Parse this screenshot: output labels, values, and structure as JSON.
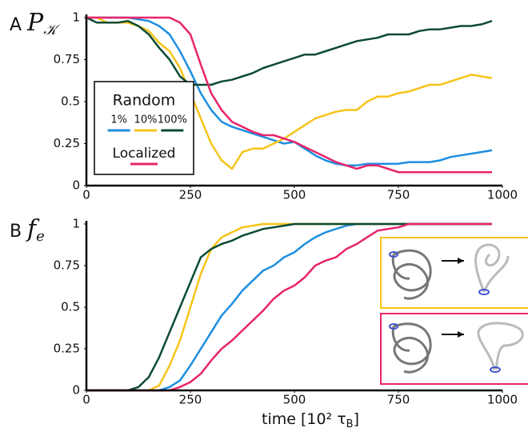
{
  "chart_data": [
    {
      "type": "line",
      "panel": "A",
      "ylabel": "P",
      "ylabel_subscript": "𝒦",
      "legend_title": "Random",
      "legend": "lower left",
      "x": [
        0,
        25,
        50,
        75,
        100,
        125,
        150,
        175,
        200,
        225,
        250,
        275,
        300,
        325,
        350,
        375,
        400,
        425,
        450,
        475,
        500,
        525,
        550,
        575,
        600,
        625,
        650,
        675,
        700,
        725,
        750,
        775,
        800,
        825,
        850,
        875,
        900,
        925,
        950,
        975
      ],
      "xlim": [
        0,
        1000
      ],
      "xticks": [
        0,
        250,
        500,
        750,
        1000
      ],
      "ylim": [
        0,
        1
      ],
      "yticks": [
        0,
        0.25,
        0.5,
        0.75,
        1
      ],
      "series": [
        {
          "name": "1%",
          "color": "#1e8fe0",
          "values": [
            1,
            1,
            1,
            1,
            1,
            0.99,
            0.98,
            0.95,
            0.9,
            0.8,
            0.68,
            0.55,
            0.45,
            0.38,
            0.35,
            0.33,
            0.31,
            0.29,
            0.27,
            0.25,
            0.26,
            0.22,
            0.18,
            0.15,
            0.13,
            0.12,
            0.12,
            0.13,
            0.13,
            0.13,
            0.13,
            0.14,
            0.14,
            0.14,
            0.15,
            0.17,
            0.18,
            0.19,
            0.2,
            0.21
          ]
        },
        {
          "name": "10%",
          "color": "#f6c41a",
          "values": [
            1,
            1,
            0.97,
            0.97,
            0.97,
            0.95,
            0.92,
            0.85,
            0.8,
            0.7,
            0.55,
            0.4,
            0.25,
            0.15,
            0.1,
            0.2,
            0.22,
            0.22,
            0.25,
            0.28,
            0.32,
            0.36,
            0.4,
            0.42,
            0.44,
            0.45,
            0.45,
            0.5,
            0.53,
            0.53,
            0.55,
            0.56,
            0.58,
            0.6,
            0.6,
            0.62,
            0.64,
            0.66,
            0.65,
            0.64
          ]
        },
        {
          "name": "100%",
          "color": "#0c4b33",
          "values": [
            1,
            0.97,
            0.97,
            0.97,
            0.98,
            0.95,
            0.9,
            0.82,
            0.75,
            0.65,
            0.6,
            0.6,
            0.6,
            0.62,
            0.63,
            0.65,
            0.67,
            0.7,
            0.72,
            0.74,
            0.76,
            0.78,
            0.78,
            0.8,
            0.82,
            0.84,
            0.86,
            0.87,
            0.88,
            0.9,
            0.9,
            0.9,
            0.92,
            0.93,
            0.93,
            0.94,
            0.95,
            0.95,
            0.96,
            0.98
          ]
        },
        {
          "name": "Localized",
          "color": "#e8246b",
          "values": [
            1,
            1,
            1,
            1,
            1,
            1,
            1,
            1,
            1,
            0.97,
            0.9,
            0.72,
            0.55,
            0.45,
            0.38,
            0.35,
            0.32,
            0.3,
            0.3,
            0.28,
            0.26,
            0.23,
            0.2,
            0.17,
            0.14,
            0.12,
            0.1,
            0.12,
            0.12,
            0.1,
            0.08,
            0.08,
            0.08,
            0.08,
            0.08,
            0.08,
            0.08,
            0.08,
            0.08,
            0.08
          ]
        }
      ]
    },
    {
      "type": "line",
      "panel": "B",
      "ylabel": "f",
      "ylabel_subscript": "e",
      "xlabel": "time [10² τ",
      "xlabel_subscript": "B",
      "xlabel_end": "]",
      "x": [
        0,
        25,
        50,
        75,
        100,
        125,
        150,
        175,
        200,
        225,
        250,
        275,
        300,
        325,
        350,
        375,
        400,
        425,
        450,
        475,
        500,
        525,
        550,
        575,
        600,
        625,
        650,
        675,
        700,
        725,
        750,
        775,
        800,
        825,
        850,
        875,
        900,
        925,
        950,
        975
      ],
      "xlim": [
        0,
        1000
      ],
      "xticks": [
        0,
        250,
        500,
        750,
        1000
      ],
      "ylim": [
        0,
        1
      ],
      "yticks": [
        0,
        0.25,
        0.5,
        0.75,
        1
      ],
      "series": [
        {
          "name": "1%",
          "color": "#1e8fe0",
          "values": [
            0,
            0,
            0,
            0,
            0,
            0,
            0,
            0,
            0.02,
            0.06,
            0.15,
            0.25,
            0.35,
            0.45,
            0.52,
            0.6,
            0.66,
            0.72,
            0.75,
            0.8,
            0.83,
            0.88,
            0.92,
            0.95,
            0.97,
            0.99,
            1,
            1,
            1,
            1,
            1,
            1,
            1,
            1,
            1,
            1,
            1,
            1,
            1,
            1
          ]
        },
        {
          "name": "10%",
          "color": "#f6c41a",
          "values": [
            0,
            0,
            0,
            0,
            0,
            0,
            0,
            0.03,
            0.15,
            0.3,
            0.5,
            0.7,
            0.85,
            0.92,
            0.95,
            0.98,
            0.99,
            1,
            1,
            1,
            1,
            1,
            1,
            1,
            1,
            1,
            1,
            1,
            1,
            1,
            1,
            1,
            1,
            1,
            1,
            1,
            1,
            1,
            1,
            1
          ]
        },
        {
          "name": "100%",
          "color": "#0c4b33",
          "values": [
            0,
            0,
            0,
            0,
            0,
            0.02,
            0.08,
            0.2,
            0.35,
            0.5,
            0.65,
            0.8,
            0.85,
            0.88,
            0.9,
            0.93,
            0.95,
            0.97,
            0.98,
            0.99,
            1,
            1,
            1,
            1,
            1,
            1,
            1,
            1,
            1,
            1,
            1,
            1,
            1,
            1,
            1,
            1,
            1,
            1,
            1,
            1
          ]
        },
        {
          "name": "Localized",
          "color": "#e8246b",
          "values": [
            0,
            0,
            0,
            0,
            0,
            0,
            0,
            0,
            0,
            0.02,
            0.05,
            0.1,
            0.18,
            0.25,
            0.3,
            0.36,
            0.42,
            0.48,
            0.55,
            0.6,
            0.63,
            0.68,
            0.75,
            0.78,
            0.8,
            0.85,
            0.88,
            0.92,
            0.96,
            0.97,
            0.98,
            1,
            1,
            1,
            1,
            1,
            1,
            1,
            1,
            1
          ]
        }
      ]
    }
  ]
}
